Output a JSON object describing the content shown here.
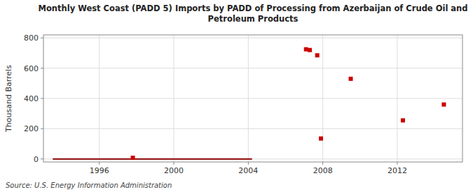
{
  "chart_data": {
    "type": "scatter",
    "title": "Monthly West Coast (PADD 5) Imports by PADD of Processing from Azerbaijan of Crude Oil and\nPetroleum Products",
    "y_label": "Thousand Barrels",
    "source": "Source: U.S. Energy Information Administration",
    "series": [
      {
        "type": "line",
        "color": "#8b0000",
        "line_style": "solid",
        "x": [
          1993.5,
          2004.2
        ],
        "values": [
          0,
          0
        ]
      },
      {
        "type": "scatter",
        "color": "#cc0000",
        "marker": "square",
        "x": [
          1997.8
        ],
        "values": [
          8
        ]
      },
      {
        "type": "scatter",
        "color": "#cc0000",
        "marker": "square",
        "x": [
          2007.1,
          2007.3,
          2007.7,
          2007.9,
          2009.5,
          2012.3,
          2014.5
        ],
        "values": [
          725,
          720,
          685,
          135,
          530,
          255,
          360
        ]
      }
    ],
    "xlim": [
      1993,
      2015.5
    ],
    "ylim": [
      -20,
      820
    ],
    "xticks": [
      1996,
      2000,
      2004,
      2008,
      2012
    ],
    "yticks": [
      0,
      200,
      400,
      600,
      800
    ],
    "grid": true
  }
}
